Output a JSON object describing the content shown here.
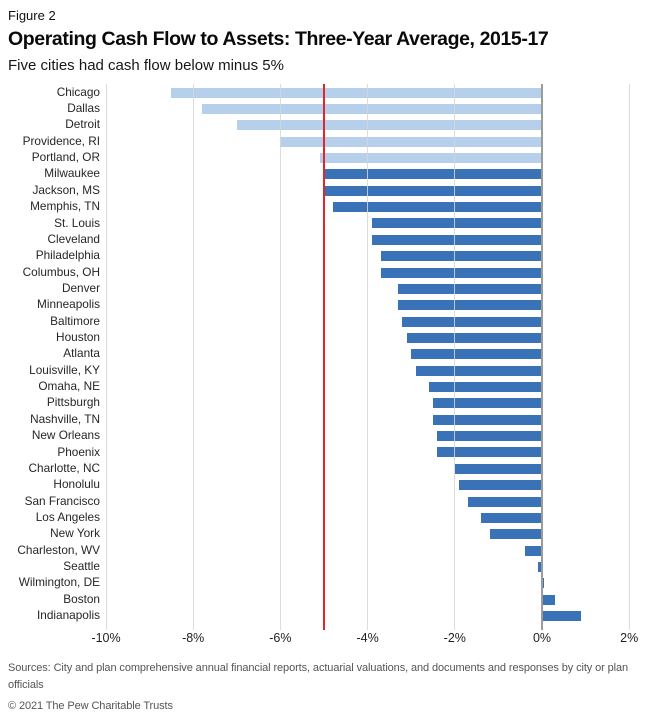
{
  "figure_label": "Figure 2",
  "title": "Operating Cash Flow to Assets: Three-Year Average, 2015-17",
  "subtitle": "Five cities had cash flow below minus 5%",
  "chart_data": {
    "type": "bar",
    "orientation": "horizontal",
    "title": "Operating Cash Flow to Assets: Three-Year Average, 2015-17",
    "subtitle": "Five cities had cash flow below minus 5%",
    "xlabel": "",
    "ylabel": "",
    "xlim": [
      -10,
      2
    ],
    "grid": true,
    "x_tick_values": [
      -10,
      -8,
      -6,
      -4,
      -2,
      0,
      2
    ],
    "x_tick_labels": [
      "-10%",
      "-8%",
      "-6%",
      "-4%",
      "-2%",
      "0%",
      "2%"
    ],
    "reference_line": {
      "value": -5,
      "color": "#e42528",
      "meaning": "minus 5% threshold"
    },
    "colors": {
      "below_threshold": "#b6d0eb",
      "default": "#3a72b8",
      "threshold": -5,
      "zero_line": "#9b9b9b",
      "gridline": "#d9d9d9"
    },
    "categories": [
      "Chicago",
      "Dallas",
      "Detroit",
      "Providence, RI",
      "Portland, OR",
      "Milwaukee",
      "Jackson, MS",
      "Memphis, TN",
      "St. Louis",
      "Cleveland",
      "Philadelphia",
      "Columbus, OH",
      "Denver",
      "Minneapolis",
      "Baltimore",
      "Houston",
      "Atlanta",
      "Louisville, KY",
      "Omaha, NE",
      "Pittsburgh",
      "Nashville, TN",
      "New Orleans",
      "Phoenix",
      "Charlotte, NC",
      "Honolulu",
      "San Francisco",
      "Los Angeles",
      "New York",
      "Charleston, WV",
      "Seattle",
      "Wilmington, DE",
      "Boston",
      "Indianapolis"
    ],
    "values": [
      -8.5,
      -7.8,
      -7.0,
      -6.0,
      -5.1,
      -5.0,
      -5.0,
      -4.8,
      -3.9,
      -3.9,
      -3.7,
      -3.7,
      -3.3,
      -3.3,
      -3.2,
      -3.1,
      -3.0,
      -2.9,
      -2.6,
      -2.5,
      -2.5,
      -2.4,
      -2.4,
      -2.0,
      -1.9,
      -1.7,
      -1.4,
      -1.2,
      -0.4,
      -0.1,
      0.05,
      0.3,
      0.9
    ]
  },
  "footer": {
    "sources": "Sources: City and plan comprehensive annual financial reports, actuarial valuations, and documents and responses by city or plan officials",
    "copyright": "© 2021 The Pew Charitable Trusts"
  }
}
